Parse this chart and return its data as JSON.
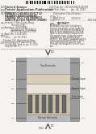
{
  "bg_color": "#f5f3f0",
  "barcode_color": "#111111",
  "text_color": "#444444",
  "divider_color": "#aaaaaa",
  "diagram": {
    "left_col_color": "#9a9a9a",
    "right_col_color": "#9a9a9a",
    "top_electrode_color": "#c8c8c8",
    "pinned_layer_color": "#d8cdb8",
    "spacer_layer_color": "#e8e2d8",
    "free_layer_color": "#c8bfa8",
    "bottom_electrode_color": "#b8b8b8",
    "ncc_fill_color": "#666666",
    "ncc_outline_color": "#444444",
    "arrow_color": "#222222",
    "label_color": "#333333",
    "layer_outline": "#888888",
    "top_electrode_label": "Top Electrode",
    "pinned_layer_label": "Pinned Layer",
    "spacer_layer_label": "Spacer Layer",
    "free_layer_label": "Free Layer",
    "bottom_electrode_label": "Bottom Electrode"
  }
}
